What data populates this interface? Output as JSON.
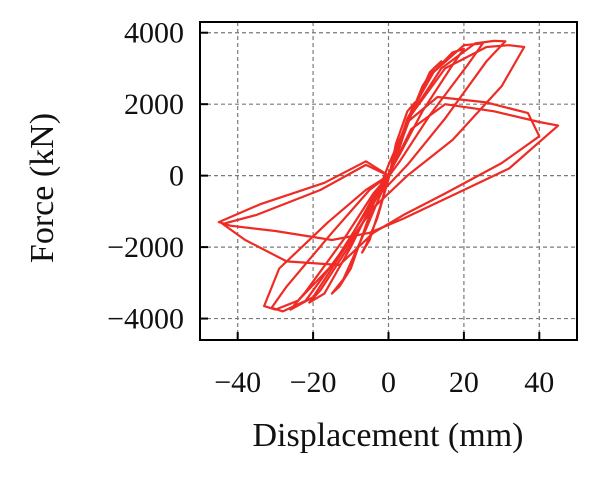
{
  "chart_data": {
    "type": "line",
    "title": "",
    "xlabel": "Displacement (mm)",
    "ylabel": "Force (kN)",
    "xlim": [
      -50,
      50
    ],
    "ylim": [
      -4600,
      4300
    ],
    "xticks": [
      -40,
      -20,
      0,
      20,
      40
    ],
    "xtick_labels": [
      "−40",
      "−20",
      "0",
      "20",
      "40"
    ],
    "yticks": [
      -4000,
      -2000,
      0,
      2000,
      4000
    ],
    "ytick_labels": [
      "−4000",
      "−2000",
      "0",
      "2000",
      "4000"
    ],
    "grid": true,
    "legend": "none",
    "color": "#ee2b24",
    "series": [
      {
        "x": [
          0,
          3,
          6,
          7,
          5,
          2,
          0,
          -3,
          -6,
          -7,
          -5,
          -2,
          0
        ],
        "y": [
          0,
          800,
          1800,
          2050,
          1800,
          900,
          -100,
          -1200,
          -1950,
          -2150,
          -1800,
          -800,
          0
        ]
      },
      {
        "x": [
          0,
          4,
          9,
          12,
          14,
          11,
          5,
          0,
          -4,
          -10,
          -13,
          -15,
          -12,
          -6,
          0
        ],
        "y": [
          0,
          1200,
          2500,
          3000,
          3200,
          2900,
          1500,
          300,
          -800,
          -2600,
          -3100,
          -3300,
          -2900,
          -1500,
          0
        ]
      },
      {
        "x": [
          0,
          5,
          11,
          17,
          20,
          17,
          9,
          3,
          -3,
          -10,
          -17,
          -21,
          -18,
          -10,
          -3,
          0
        ],
        "y": [
          0,
          1500,
          2800,
          3450,
          3550,
          3100,
          1800,
          600,
          -500,
          -2000,
          -3300,
          -3550,
          -3200,
          -1900,
          -600,
          0
        ]
      },
      {
        "x": [
          0,
          5,
          12,
          20,
          25,
          21,
          11,
          3,
          -4,
          -12,
          -20,
          -26,
          -22,
          -12,
          -4,
          0
        ],
        "y": [
          0,
          1600,
          2900,
          3650,
          3700,
          3100,
          1700,
          400,
          -600,
          -2100,
          -3400,
          -3750,
          -3250,
          -1800,
          -500,
          0
        ]
      },
      {
        "x": [
          0,
          6,
          14,
          23,
          28,
          31,
          26,
          15,
          5,
          -4,
          -13,
          -22,
          -28,
          -31,
          -27,
          -15,
          -5,
          0
        ],
        "y": [
          0,
          1700,
          3000,
          3700,
          3770,
          3760,
          3200,
          1600,
          300,
          -700,
          -2200,
          -3500,
          -3800,
          -3700,
          -3100,
          -1600,
          -400,
          0
        ]
      },
      {
        "x": [
          0,
          6,
          15,
          26,
          32,
          36,
          30,
          17,
          5,
          -4,
          -14,
          -24,
          -30,
          -33,
          -29,
          -16,
          -6,
          0
        ],
        "y": [
          0,
          1700,
          3000,
          3600,
          3650,
          3600,
          2500,
          1000,
          0,
          -900,
          -2400,
          -3500,
          -3750,
          -3650,
          -2600,
          -1300,
          -400,
          0
        ]
      },
      {
        "x": [
          0,
          5,
          13,
          26,
          37,
          40,
          30,
          15,
          4,
          -4,
          -13,
          -27,
          -38,
          -44,
          -35,
          -18,
          -6,
          0
        ],
        "y": [
          0,
          1500,
          2200,
          2050,
          1750,
          1100,
          350,
          -500,
          -1100,
          -1600,
          -2500,
          -2400,
          -1800,
          -1350,
          -1100,
          -400,
          300,
          0
        ]
      },
      {
        "x": [
          0,
          6,
          15,
          28,
          40,
          45,
          32,
          16,
          4,
          -5,
          -15,
          -30,
          -42,
          -45,
          -34,
          -17,
          -6,
          0
        ],
        "y": [
          0,
          1300,
          2000,
          1800,
          1500,
          1400,
          200,
          -600,
          -1200,
          -1600,
          -1800,
          -1550,
          -1400,
          -1300,
          -800,
          -200,
          400,
          0
        ]
      }
    ]
  }
}
